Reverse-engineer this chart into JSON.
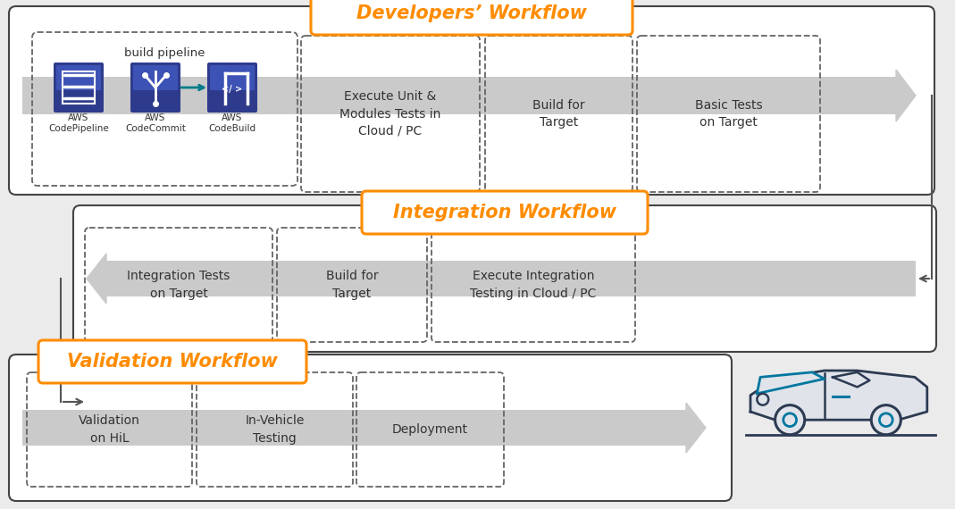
{
  "bg_color": "#ebebeb",
  "title_color": "#FF8C00",
  "box_edge_color": "#444444",
  "dashed_box_color": "#666666",
  "arrow_band_color": "#c5c5c5",
  "aws_blue_dark": "#2E3B8C",
  "aws_blue_mid": "#3D52B5",
  "aws_blue_light": "#4B5ECC",
  "teal_arrow": "#007B8A",
  "connector_color": "#555555",
  "text_color": "#222222",
  "workflow1_title": "Developers’ Workflow",
  "workflow2_title": "Integration Workflow",
  "workflow3_title": "Validation Workflow",
  "dev_steps": [
    "Execute Unit &\nModules Tests in\nCloud / PC",
    "Build for\nTarget",
    "Basic Tests\non Target"
  ],
  "int_steps": [
    "Integration Tests\non Target",
    "Build for\nTarget",
    "Execute Integration\nTesting in Cloud / PC"
  ],
  "val_steps": [
    "Validation\non HiL",
    "In-Vehicle\nTesting",
    "Deployment"
  ],
  "aws_labels": [
    "AWS\nCodePipeline",
    "AWS\nCodeCommit",
    "AWS\nCodeBuild"
  ],
  "build_pipeline_label": "build pipeline",
  "car_color": "#2C3A52",
  "car_teal": "#0077A0",
  "car_body_fill": "#e0e4ea"
}
